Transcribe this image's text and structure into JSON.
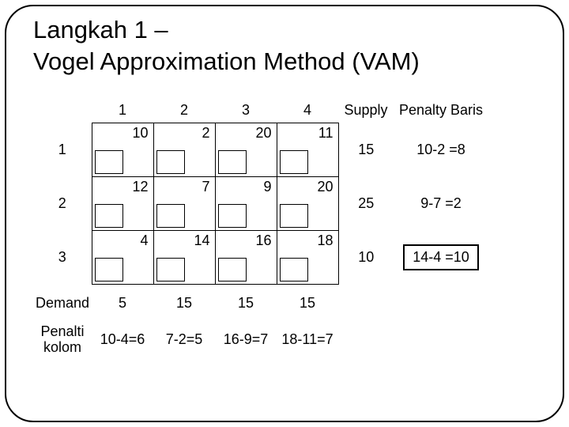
{
  "title_line1_plain": "Lan",
  "title_line1_under": "g",
  "title_line1_rest": "kah 1 –",
  "title_line2": "Vogel Approximation Method (VAM)",
  "col_headers": [
    "1",
    "2",
    "3",
    "4"
  ],
  "supply_header": "Supply",
  "penalty_row_header": "Penalty Baris",
  "row_labels": [
    "1",
    "2",
    "3"
  ],
  "costs": [
    [
      "10",
      "2",
      "20",
      "11"
    ],
    [
      "12",
      "7",
      "9",
      "20"
    ],
    [
      "4",
      "14",
      "16",
      "18"
    ]
  ],
  "supply": [
    "15",
    "25",
    "10"
  ],
  "penalty_row": [
    "10-2 =8",
    "9-7 =2",
    "14-4 =10"
  ],
  "demand_label": "Demand",
  "demand": [
    "5",
    "15",
    "15",
    "15"
  ],
  "penalty_col_label_l1": "Penalti",
  "penalty_col_label_l2": "kolom",
  "penalty_col": [
    "10-4=6",
    "7-2=5",
    "16-9=7",
    "18-11=7"
  ],
  "highlight_row_index": 2
}
